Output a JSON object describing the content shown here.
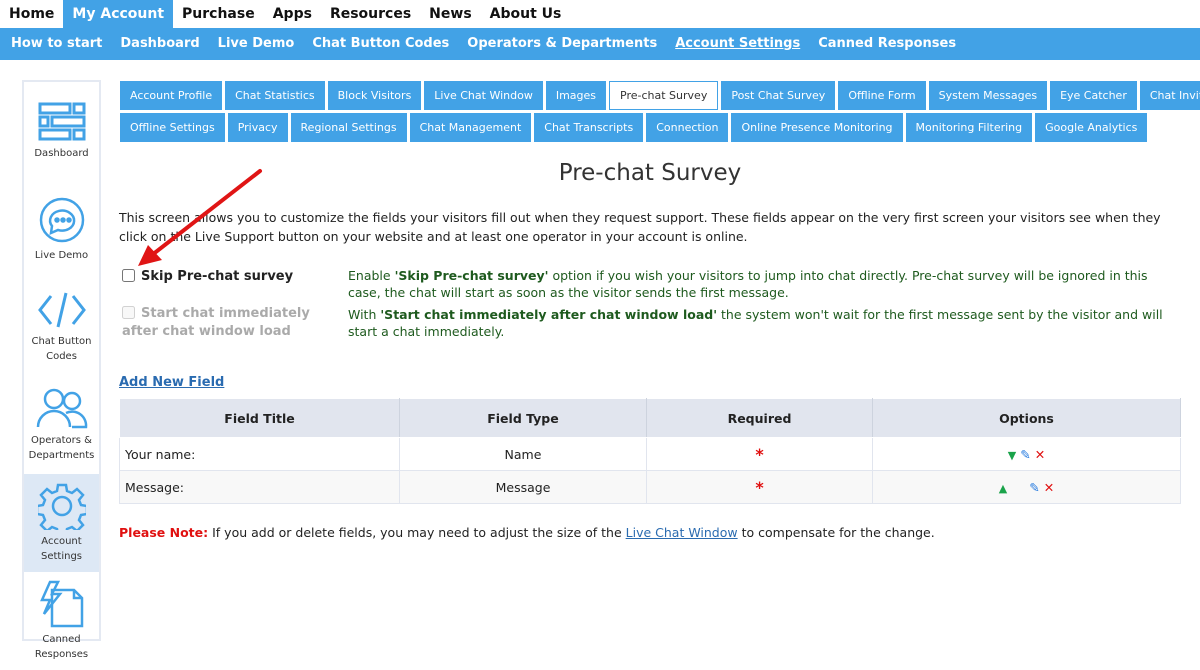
{
  "top_nav": [
    "Home",
    "My Account",
    "Purchase",
    "Apps",
    "Resources",
    "News",
    "About Us"
  ],
  "sub_nav": [
    "How to start",
    "Dashboard",
    "Live Demo",
    "Chat Button Codes",
    "Operators & Departments",
    "Account Settings",
    "Canned Responses"
  ],
  "sidebar": [
    {
      "label": "Dashboard",
      "icon": "dashboard-icon"
    },
    {
      "label": "Live Demo",
      "icon": "chat-bubble-icon"
    },
    {
      "label": "Chat Button Codes",
      "icon": "code-icon"
    },
    {
      "label": "Operators & Departments",
      "icon": "users-icon"
    },
    {
      "label": "Account Settings",
      "icon": "gear-icon"
    },
    {
      "label": "Canned Responses",
      "icon": "document-bolt-icon"
    }
  ],
  "tabs_row1": [
    "Account Profile",
    "Chat Statistics",
    "Block Visitors",
    "Live Chat Window",
    "Images",
    "Pre-chat Survey",
    "Post Chat Survey",
    "Offline Form",
    "System Messages",
    "Eye Catcher",
    "Chat Invitation"
  ],
  "tabs_row2": [
    "Offline Settings",
    "Privacy",
    "Regional Settings",
    "Chat Management",
    "Chat Transcripts",
    "Connection",
    "Online Presence Monitoring",
    "Monitoring Filtering",
    "Google Analytics"
  ],
  "title": "Pre-chat Survey",
  "intro": "This screen allows you to customize the fields your visitors fill out when they request support. These fields appear on the very first screen your visitors see when they click on the Live Support button on your website and at least one operator in your account is online.",
  "options": [
    {
      "label": "Skip Pre-chat survey",
      "checked": false,
      "disabled": false,
      "desc_pre": "Enable ",
      "desc_bold": "'Skip Pre-chat survey'",
      "desc_post": " option if you wish your visitors to jump into chat directly. Pre-chat survey will be ignored in this case, the chat will start as soon as the visitor sends the first message."
    },
    {
      "label": "Start chat immediately after chat window load",
      "checked": false,
      "disabled": true,
      "desc_pre": "With ",
      "desc_bold": "'Start chat immediately after chat window load'",
      "desc_post": " the system won't wait for the first message sent by the visitor and will start a chat immediately."
    }
  ],
  "add_field": "Add New Field",
  "table": {
    "headers": [
      "Field Title",
      "Field Type",
      "Required",
      "Options"
    ],
    "rows": [
      {
        "title": "Your name:",
        "type": "Name",
        "required": "*"
      },
      {
        "title": "Message:",
        "type": "Message",
        "required": "*"
      }
    ]
  },
  "note": {
    "label": "Please Note:",
    "pre": " If you add or delete fields, you may need to adjust the size of the ",
    "link": "Live Chat Window",
    "post": " to compensate for the change."
  },
  "colors": {
    "accent": "#42a2e6",
    "desc_text": "#1e5a1e",
    "required": "#e01010",
    "arrow": "#e01515"
  }
}
